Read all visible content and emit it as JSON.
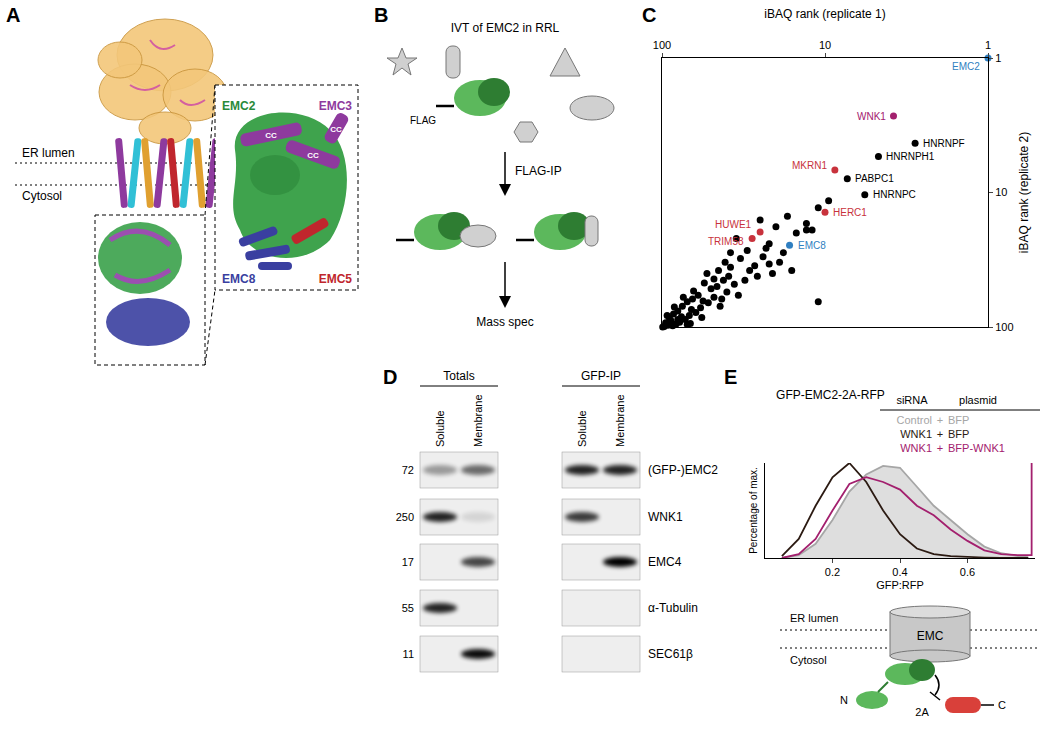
{
  "panel_labels": [
    "A",
    "B",
    "C",
    "D",
    "E"
  ],
  "A": {
    "membrane": [
      "ER lumen",
      "Cytosol"
    ],
    "subunits": [
      "EMC2",
      "EMC3",
      "EMC8",
      "EMC5"
    ],
    "helix_labels": [
      "CC",
      "CC",
      "CC"
    ]
  },
  "B": {
    "title": "IVT of EMC2 in RRL",
    "tag": "FLAG",
    "steps": [
      "FLAG-IP",
      "Mass spec"
    ]
  },
  "chart_data": [
    {
      "type": "scatter",
      "xlabel": "iBAQ rank (replicate 1)",
      "ylabel": "iBAQ rank (replicate 2)",
      "log": true,
      "xlim": [
        100,
        1
      ],
      "ylim": [
        100,
        1
      ],
      "xticks": [
        100,
        10,
        1
      ],
      "yticks": [
        100,
        10,
        1
      ],
      "x": [
        1,
        3.8,
        2.8,
        4.7,
        8.7,
        7.3,
        5.7,
        10,
        25,
        28,
        16.5,
        9.5,
        13,
        15,
        12,
        17,
        20,
        22,
        18,
        11,
        25,
        30,
        19,
        24,
        27,
        16,
        33,
        21,
        35,
        13,
        38,
        42,
        36,
        45,
        50,
        40,
        55,
        48,
        60,
        52,
        65,
        44,
        58,
        70,
        62,
        75,
        68,
        80,
        72,
        85,
        78,
        90,
        82,
        88,
        95,
        92,
        97,
        86,
        76,
        66,
        56,
        46,
        39,
        31,
        29,
        26,
        34,
        48,
        53,
        43,
        64,
        74,
        57,
        67,
        80,
        93,
        70,
        99,
        84,
        38,
        41,
        23,
        22,
        11
      ],
      "y": [
        1,
        2.7,
        4.3,
        5.4,
        6.8,
        7.9,
        10.4,
        14,
        19.7,
        22,
        24.7,
        11.5,
        17,
        20,
        19,
        15,
        18,
        24,
        28,
        13,
        16,
        27,
        33,
        30,
        35,
        38,
        31,
        40,
        22,
        19,
        36,
        45,
        48,
        38,
        52,
        55,
        47,
        60,
        58,
        66,
        62,
        70,
        72,
        65,
        78,
        70,
        82,
        76,
        88,
        80,
        92,
        86,
        95,
        90,
        93,
        97,
        99,
        98,
        84,
        74,
        64,
        50,
        42,
        45,
        38,
        42,
        58,
        44,
        40,
        62,
        54,
        60,
        85,
        94,
        88,
        82,
        96,
        100,
        71,
        28,
        33,
        26,
        34,
        65
      ],
      "labels": [
        "EMC2",
        "WNK1",
        "HNRNPF",
        "HNRNPH1",
        "MKRN1",
        "PABPC1",
        "HNRNPC",
        "HERC1",
        "HUWE1",
        "TRIM58",
        "EMC8",
        null,
        null,
        null,
        null,
        null,
        null,
        null,
        null,
        null,
        null,
        null,
        null,
        null,
        null,
        null,
        null,
        null,
        null,
        null,
        null,
        null,
        null,
        null,
        null,
        null,
        null,
        null,
        null,
        null,
        null,
        null,
        null,
        null,
        null,
        null,
        null,
        null,
        null,
        null,
        null,
        null,
        null,
        null,
        null,
        null,
        null,
        null,
        null,
        null,
        null,
        null,
        null,
        null,
        null,
        null,
        null,
        null,
        null,
        null,
        null,
        null,
        null,
        null,
        null,
        null,
        null,
        null,
        null,
        null,
        null,
        null,
        null,
        null
      ],
      "colors": [
        "#2f7fc1",
        "#a3206e",
        "#000000",
        "#000000",
        "#c8323c",
        "#000000",
        "#000000",
        "#c8323c",
        "#c8323c",
        "#c8323c",
        "#2f7fc1",
        "#000000",
        "#000000",
        "#000000",
        "#000000",
        "#000000",
        "#000000",
        "#000000",
        "#000000",
        "#000000",
        "#000000",
        "#000000",
        "#000000",
        "#000000",
        "#000000",
        "#000000",
        "#000000",
        "#000000",
        "#000000",
        "#000000",
        "#000000",
        "#000000",
        "#000000",
        "#000000",
        "#000000",
        "#000000",
        "#000000",
        "#000000",
        "#000000",
        "#000000",
        "#000000",
        "#000000",
        "#000000",
        "#000000",
        "#000000",
        "#000000",
        "#000000",
        "#000000",
        "#000000",
        "#000000",
        "#000000",
        "#000000",
        "#000000",
        "#000000",
        "#000000",
        "#000000",
        "#000000",
        "#000000",
        "#000000",
        "#000000",
        "#000000",
        "#000000",
        "#000000",
        "#000000",
        "#000000",
        "#000000",
        "#000000",
        "#000000",
        "#000000",
        "#000000",
        "#000000",
        "#000000",
        "#000000",
        "#000000",
        "#000000",
        "#000000",
        "#000000",
        "#000000",
        "#000000",
        "#000000",
        "#000000",
        "#000000",
        "#000000",
        "#000000"
      ]
    },
    {
      "type": "line",
      "title": "GFP-EMC2-2A-RFP",
      "xlabel": "GFP:RFP",
      "ylabel": "Percentage of max.",
      "xlim": [
        0,
        0.8
      ],
      "xticks": [
        0.2,
        0.4,
        0.6
      ],
      "ylim": [
        0,
        100
      ],
      "tick_labels": "x",
      "legend_header": [
        "siRNA",
        "plasmid"
      ],
      "legend_joiner": "+",
      "series": [
        {
          "siRNA": "Control",
          "plasmid": "BFP",
          "color": "#a6a6a6",
          "type": "area",
          "x": [
            0.05,
            0.1,
            0.15,
            0.2,
            0.25,
            0.3,
            0.35,
            0.4,
            0.45,
            0.5,
            0.55,
            0.6,
            0.65,
            0.7,
            0.75,
            0.78
          ],
          "values": [
            0,
            3,
            15,
            40,
            70,
            88,
            97,
            95,
            75,
            55,
            40,
            25,
            12,
            5,
            2,
            1
          ]
        },
        {
          "siRNA": "WNK1",
          "plasmid": "BFP",
          "color": "#2b1a12",
          "type": "line",
          "x": [
            0.05,
            0.1,
            0.15,
            0.2,
            0.25,
            0.3,
            0.35,
            0.4,
            0.45,
            0.5,
            0.55,
            0.6,
            0.65,
            0.7,
            0.75,
            0.78
          ],
          "values": [
            2,
            20,
            55,
            85,
            100,
            80,
            50,
            25,
            10,
            4,
            2,
            1,
            0.5,
            0,
            0,
            0
          ]
        },
        {
          "siRNA": "WNK1",
          "plasmid": "BFP-WNK1",
          "color": "#a3206e",
          "type": "line",
          "x": [
            0.05,
            0.1,
            0.15,
            0.2,
            0.25,
            0.3,
            0.35,
            0.4,
            0.45,
            0.5,
            0.55,
            0.6,
            0.65,
            0.7,
            0.75,
            0.78,
            0.79,
            0.79
          ],
          "values": [
            0,
            4,
            20,
            50,
            78,
            85,
            80,
            72,
            55,
            45,
            30,
            18,
            8,
            4,
            3,
            3,
            3,
            100
          ]
        }
      ]
    }
  ],
  "D": {
    "groups": [
      "Totals",
      "GFP-IP"
    ],
    "lanes": [
      "Soluble",
      "Membrane",
      "Soluble",
      "Membrane"
    ],
    "rows": [
      {
        "marker": 72,
        "label": "(GFP-)EMC2",
        "bands": [
          0.35,
          0.55,
          0.85,
          0.85
        ]
      },
      {
        "marker": 250,
        "label": "WNK1",
        "bands": [
          0.85,
          0.1,
          0.75,
          0
        ]
      },
      {
        "marker": 17,
        "label": "EMC4",
        "bands": [
          0,
          0.7,
          0,
          1
        ]
      },
      {
        "marker": 55,
        "label": "α-Tubulin",
        "bands": [
          0.85,
          0,
          0,
          0
        ]
      },
      {
        "marker": 11,
        "label": "SEC61β",
        "bands": [
          0,
          0.95,
          0,
          0
        ]
      }
    ]
  },
  "E_scheme": {
    "compartments": [
      "ER lumen",
      "Cytosol"
    ],
    "complex": "EMC",
    "termini": [
      "N",
      "C"
    ],
    "linker": "2A"
  }
}
